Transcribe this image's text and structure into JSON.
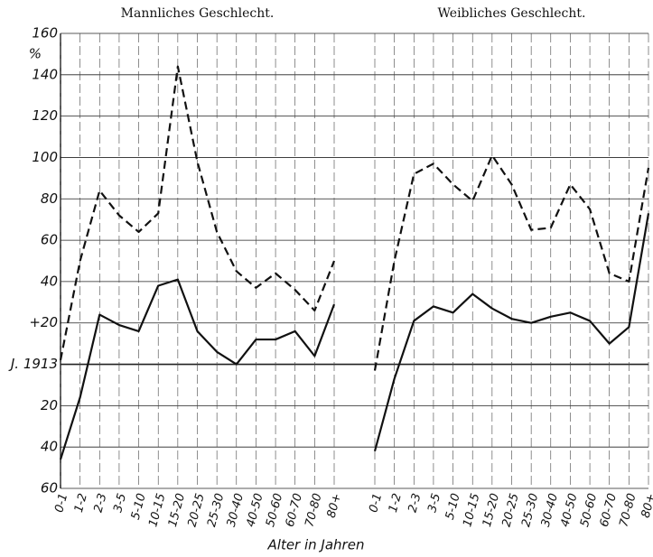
{
  "chart_data": [
    {
      "type": "line",
      "title": "Mannliches Geschlecht.",
      "categories": [
        "0-1",
        "1-2",
        "2-3",
        "3-5",
        "5-10",
        "10-15",
        "15-20",
        "20-25",
        "25-30",
        "30-40",
        "40-50",
        "50-60",
        "60-70",
        "70-80",
        "80+"
      ],
      "series": [
        {
          "style": "dashed",
          "color": "#111",
          "values": [
            2,
            50,
            84,
            72,
            64,
            73,
            144,
            98,
            64,
            45,
            37,
            44,
            36,
            26,
            50
          ]
        },
        {
          "style": "solid",
          "color": "#111",
          "values": [
            -46,
            -16,
            24,
            19,
            16,
            38,
            41,
            16,
            6,
            0,
            12,
            12,
            16,
            4,
            29
          ]
        }
      ]
    },
    {
      "type": "line",
      "title": "Weibliches Geschlecht.",
      "categories": [
        "0-1",
        "1-2",
        "2-3",
        "3-5",
        "5-10",
        "10-15",
        "15-20",
        "20-25",
        "25-30",
        "30-40",
        "40-50",
        "50-60",
        "60-70",
        "70-80",
        "80+"
      ],
      "series": [
        {
          "style": "dashed",
          "color": "#111",
          "values": [
            -3,
            50,
            92,
            97,
            87,
            79,
            101,
            87,
            65,
            66,
            87,
            75,
            44,
            40,
            95
          ]
        },
        {
          "style": "solid",
          "color": "#111",
          "values": [
            -42,
            -7,
            21,
            28,
            25,
            34,
            27,
            22,
            20,
            23,
            25,
            21,
            10,
            18,
            73
          ]
        }
      ]
    }
  ],
  "y_axis": {
    "unit": "%",
    "ylim": [
      -60,
      160
    ],
    "yticks": [
      {
        "value": -60,
        "label": "60"
      },
      {
        "value": -40,
        "label": "40"
      },
      {
        "value": -20,
        "label": "20"
      },
      {
        "value": 0,
        "label": "J. 1913"
      },
      {
        "value": 20,
        "label": "+20"
      },
      40,
      60,
      80,
      100,
      120,
      140,
      160
    ]
  },
  "x_label": "Alter in Jahren"
}
